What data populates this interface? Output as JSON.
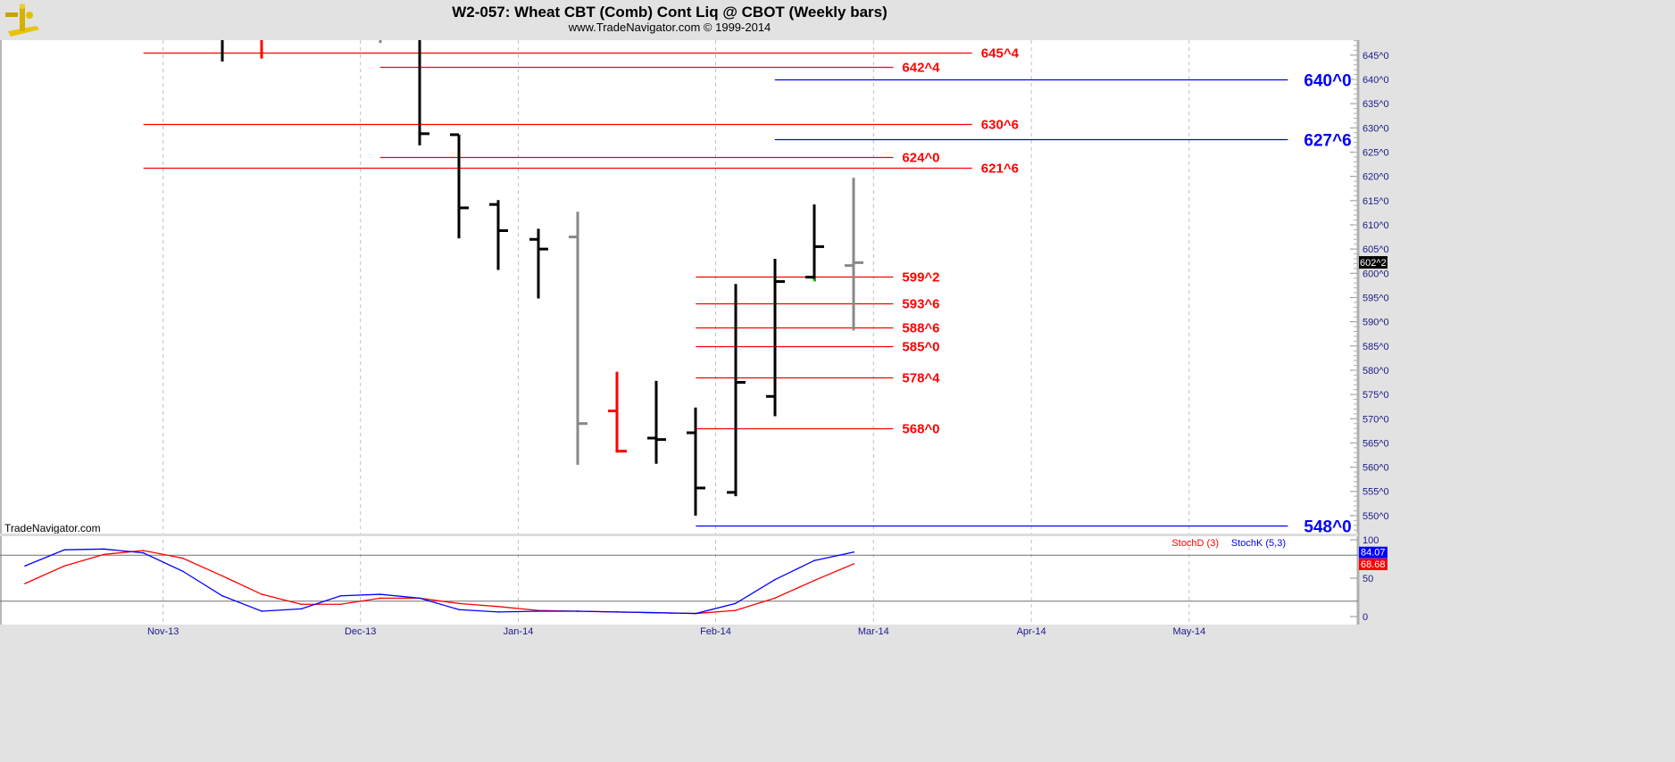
{
  "header": {
    "title": "W2-057:  Wheat CBT (Comb) Cont Liq @ CBOT  (Weekly bars)",
    "subtitle": "www.TradeNavigator.com © 1999-2014",
    "logo_icon": "sextant-icon"
  },
  "watermark": "TradeNavigator.com",
  "chart_data": [
    {
      "type": "ohlc",
      "title": "W2-057:  Wheat CBT (Comb) Cont Liq @ CBOT  (Weekly bars)",
      "price_notation": "eighths (e.g. 645^4 = 645 4/8)",
      "ylim": [
        546.3,
        648.1
      ],
      "y_ticks": [
        "550^0",
        "555^0",
        "560^0",
        "565^0",
        "570^0",
        "575^0",
        "580^0",
        "585^0",
        "590^0",
        "595^0",
        "600^0",
        "605^0",
        "610^0",
        "615^0",
        "620^0",
        "625^0",
        "630^0",
        "635^0",
        "640^0",
        "645^0"
      ],
      "current_price_label": "602^2",
      "current_price": 602.25,
      "x_labels": [
        {
          "label": "Nov-13",
          "date": "2013-11-01"
        },
        {
          "label": "Dec-13",
          "date": "2013-12-06"
        },
        {
          "label": "Jan-14",
          "date": "2014-01-03"
        },
        {
          "label": "Feb-14",
          "date": "2014-02-07"
        },
        {
          "label": "Mar-14",
          "date": "2014-03-07"
        },
        {
          "label": "Apr-14",
          "date": "2014-04-04"
        },
        {
          "label": "May-14",
          "date": "2014-05-02"
        }
      ],
      "grid": "vertical dashed at month starts",
      "bar_colors": {
        "default": "#000000",
        "alt_gray": "#888888",
        "red": "#ff0000"
      },
      "bars": [
        {
          "date": "2013-11-08",
          "open": 652,
          "high": 660,
          "low": 643.7,
          "close": 650,
          "color": "#000000"
        },
        {
          "date": "2013-11-15",
          "open": 652,
          "high": 660,
          "low": 644.3,
          "close": 650,
          "color": "#ff0000"
        },
        {
          "date": "2013-12-06",
          "open": 652,
          "high": 660,
          "low": 647.5,
          "close": 650,
          "color": "#888888"
        },
        {
          "date": "2013-12-13",
          "open": 655,
          "high": 660,
          "low": 626.4,
          "close": 628.8,
          "color": "#000000"
        },
        {
          "date": "2013-12-20",
          "open": 628.6,
          "high": 628.6,
          "low": 607.2,
          "close": 613.5,
          "color": "#000000"
        },
        {
          "date": "2013-12-27",
          "open": 614.2,
          "high": 615.1,
          "low": 600.7,
          "close": 608.8,
          "color": "#000000"
        },
        {
          "date": "2014-01-03",
          "open": 607,
          "high": 609.2,
          "low": 594.8,
          "close": 605,
          "color": "#000000"
        },
        {
          "date": "2014-01-10",
          "open": 607.5,
          "high": 612.7,
          "low": 560.5,
          "close": 569,
          "color": "#888888"
        },
        {
          "date": "2014-01-17",
          "open": 571.6,
          "high": 579.7,
          "low": 563,
          "close": 563.3,
          "color": "#ff0000"
        },
        {
          "date": "2014-01-24",
          "open": 566,
          "high": 577.8,
          "low": 560.7,
          "close": 565.7,
          "color": "#000000"
        },
        {
          "date": "2014-01-31",
          "open": 567.1,
          "high": 572.3,
          "low": 550,
          "close": 555.7,
          "color": "#000000"
        },
        {
          "date": "2014-02-07",
          "open": 554.8,
          "high": 597.8,
          "low": 554,
          "close": 577.5,
          "color": "#000000"
        },
        {
          "date": "2014-02-14",
          "open": 574.6,
          "high": 603,
          "low": 570.5,
          "close": 598.3,
          "color": "#000000"
        },
        {
          "date": "2014-02-21",
          "open": 599.2,
          "high": 614.2,
          "low": 598.7,
          "close": 605.5,
          "color": "#000000"
        },
        {
          "date": "2014-02-28",
          "open": 601.6,
          "high": 619.7,
          "low": 588.2,
          "close": 602.2,
          "color": "#888888"
        }
      ],
      "levels": [
        {
          "label": "645^4",
          "value": 645.5,
          "color": "#ff0000",
          "from": "2013-10-25",
          "to": "2014-03-21"
        },
        {
          "label": "642^4",
          "value": 642.5,
          "color": "#ff0000",
          "from": "2013-12-06",
          "to": "2014-03-07"
        },
        {
          "label": "640^0",
          "value": 640.0,
          "color": "#0000ff",
          "from": "2014-02-14",
          "to": "2014-05-16"
        },
        {
          "label": "630^6",
          "value": 630.75,
          "color": "#ff0000",
          "from": "2013-10-25",
          "to": "2014-03-21"
        },
        {
          "label": "627^6",
          "value": 627.75,
          "color": "#0000ff",
          "from": "2014-02-14",
          "to": "2014-05-16"
        },
        {
          "label": "624^0",
          "value": 624.0,
          "color": "#ff0000",
          "from": "2013-12-06",
          "to": "2014-03-07"
        },
        {
          "label": "621^6",
          "value": 621.75,
          "color": "#ff0000",
          "from": "2013-10-25",
          "to": "2014-03-21"
        },
        {
          "label": "599^2",
          "value": 599.25,
          "color": "#ff0000",
          "from": "2014-01-31",
          "to": "2014-03-07"
        },
        {
          "label": "593^6",
          "value": 593.75,
          "color": "#ff0000",
          "from": "2014-01-31",
          "to": "2014-03-07"
        },
        {
          "label": "588^6",
          "value": 588.75,
          "color": "#ff0000",
          "from": "2014-01-31",
          "to": "2014-03-07"
        },
        {
          "label": "585^0",
          "value": 585.0,
          "color": "#ff0000",
          "from": "2014-01-31",
          "to": "2014-03-07"
        },
        {
          "label": "578^4",
          "value": 578.5,
          "color": "#ff0000",
          "from": "2014-01-31",
          "to": "2014-03-07"
        },
        {
          "label": "568^0",
          "value": 568.0,
          "color": "#ff0000",
          "from": "2014-01-31",
          "to": "2014-03-07"
        },
        {
          "label": "548^0",
          "value": 548.0,
          "color": "#0000ff",
          "from": "2014-01-31",
          "to": "2014-05-16"
        }
      ]
    },
    {
      "type": "line",
      "ylim": [
        0,
        100
      ],
      "y_ticks": [
        "100",
        "50",
        "0"
      ],
      "reference_lines": [
        80,
        20
      ],
      "start_date": "2013-10-04",
      "series": [
        {
          "name": "StochK (5,3)",
          "color": "#0000ff",
          "last_label": "84.07",
          "values": [
            66,
            87,
            88,
            83,
            59,
            27,
            7,
            10,
            27,
            29,
            24,
            9,
            6,
            7,
            7,
            6,
            5,
            4,
            17,
            48,
            73,
            84.07
          ]
        },
        {
          "name": "StochD (3)",
          "color": "#ff0000",
          "last_label": "68.68",
          "values": [
            43,
            66,
            81,
            86,
            76,
            53,
            29,
            16,
            16,
            24,
            24,
            17,
            13,
            8,
            7,
            6,
            5,
            4,
            8,
            24,
            47,
            68.68
          ]
        }
      ]
    }
  ]
}
